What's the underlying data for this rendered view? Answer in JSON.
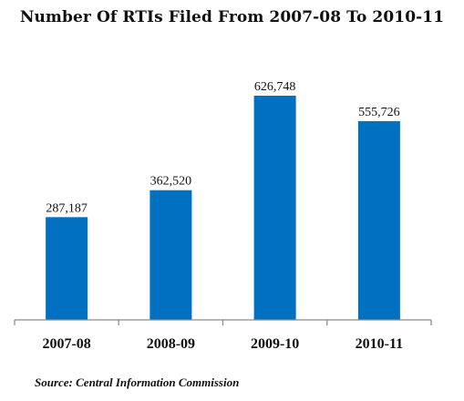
{
  "chart_data": {
    "type": "bar",
    "title": "Number Of RTIs Filed From 2007-08 To 2010-11",
    "categories": [
      "2007-08",
      "2008-09",
      "2009-10",
      "2010-11"
    ],
    "values": [
      287187,
      362520,
      626748,
      555726
    ],
    "data_labels": [
      "287,187",
      "362,520",
      "626,748",
      "555,726"
    ],
    "xlabel": "",
    "ylabel": "",
    "ylim": [
      0,
      700000
    ],
    "grid": false,
    "legend": "none",
    "bar_color": "#0070C0",
    "axis_color": "#8c8c8c"
  },
  "source": "Source: Central Information Commission"
}
